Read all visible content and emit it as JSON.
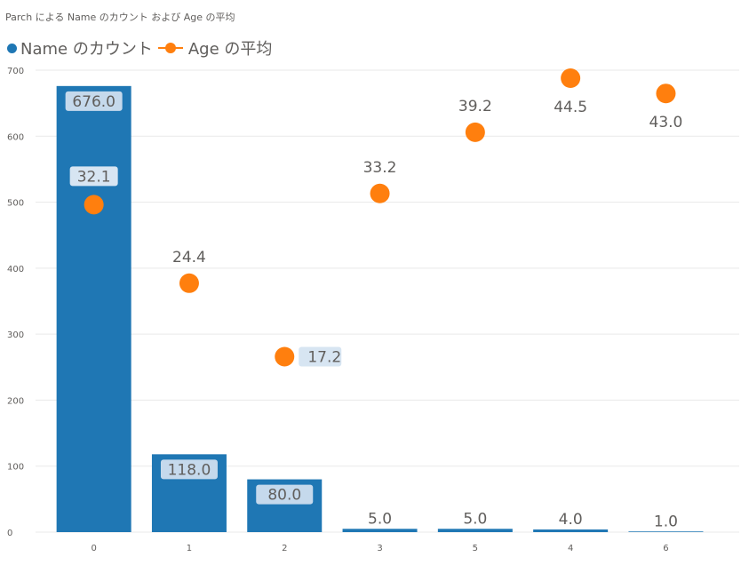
{
  "title": "Parch による Name のカウント および Age の平均",
  "legend": [
    {
      "label": "Name のカウント",
      "color": "#1f77b4",
      "kind": "dot"
    },
    {
      "label": "Age の平均",
      "color": "#ff7f0e",
      "kind": "line-dot"
    }
  ],
  "chart_data": {
    "type": "bar",
    "title": "Parch による Name のカウント および Age の平均",
    "categories": [
      "0",
      "1",
      "2",
      "3",
      "5",
      "4",
      "6"
    ],
    "series": [
      {
        "name": "Name のカウント",
        "type": "bar",
        "color": "#1f77b4",
        "values": [
          676,
          118,
          80,
          5,
          5,
          4,
          1
        ],
        "labels": [
          "676.0",
          "118.0",
          "80.0",
          "5.0",
          "5.0",
          "4.0",
          "1.0"
        ]
      },
      {
        "name": "Age の平均",
        "type": "scatter",
        "color": "#ff7f0e",
        "values": [
          32.1,
          24.4,
          17.2,
          33.2,
          39.2,
          44.5,
          43.0
        ],
        "labels": [
          "32.1",
          "24.4",
          "17.2",
          "33.2",
          "39.2",
          "44.5",
          "43.0"
        ]
      }
    ],
    "y_ticks": [
      0,
      100,
      200,
      300,
      400,
      500,
      600,
      700
    ],
    "ylim": [
      0,
      700
    ],
    "secondary_ylim": [
      0,
      44.5
    ],
    "grid": true,
    "legend_position": "top-left"
  }
}
